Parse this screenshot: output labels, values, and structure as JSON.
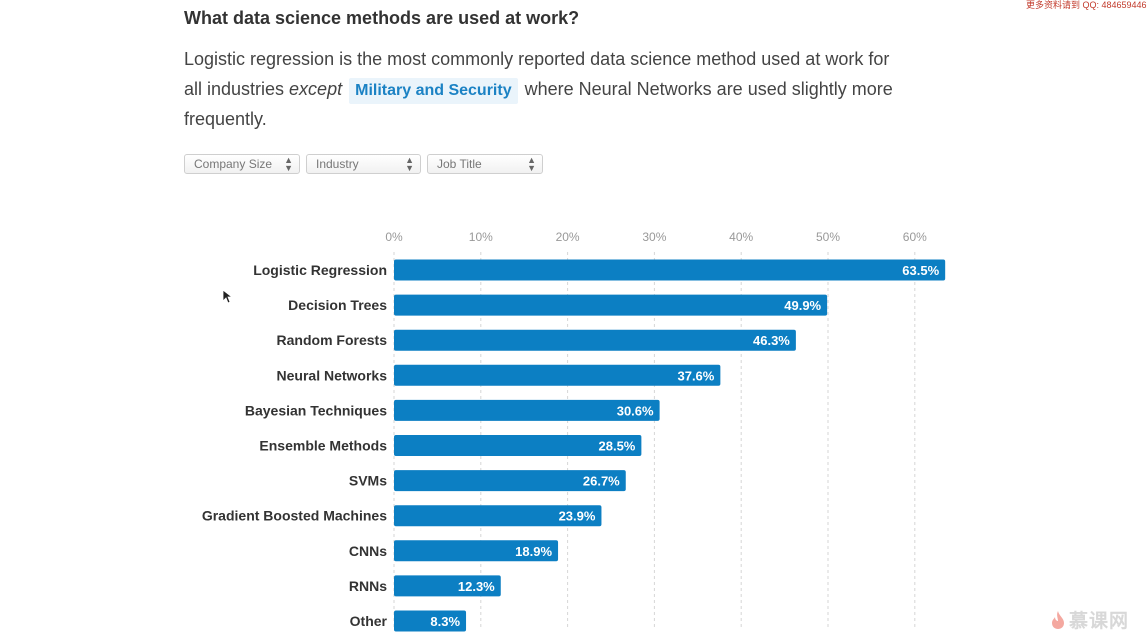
{
  "heading": "What data science methods are used at work?",
  "intro": {
    "part1": "Logistic regression is the most commonly reported data science method used at work for all industries ",
    "emphasis": "except",
    "pill": "Military and Security",
    "part2": " where Neural Networks are used slightly more frequently."
  },
  "filters": [
    {
      "label": "Company Size"
    },
    {
      "label": "Industry"
    },
    {
      "label": "Job Title"
    }
  ],
  "watermark": "更多资料请到 QQ: 484659446",
  "logo": {
    "text": "慕课网"
  },
  "colors": {
    "bar": "#0c7fc3",
    "grid": "#d6d6d6",
    "tick": "#999999",
    "pill_bg": "#eaf4fb",
    "pill_text": "#1b82c4"
  },
  "icons": {
    "filter_arrows": "up-down-arrows-icon",
    "cursor": "mouse-pointer-icon",
    "logo": "flame-icon"
  },
  "chart_data": {
    "type": "bar",
    "orientation": "horizontal",
    "categories": [
      "Logistic Regression",
      "Decision Trees",
      "Random Forests",
      "Neural Networks",
      "Bayesian Techniques",
      "Ensemble Methods",
      "SVMs",
      "Gradient Boosted Machines",
      "CNNs",
      "RNNs",
      "Other"
    ],
    "values": [
      63.5,
      49.9,
      46.3,
      37.6,
      30.6,
      28.5,
      26.7,
      23.9,
      18.9,
      12.3,
      8.3
    ],
    "value_labels": [
      "63.5%",
      "49.9%",
      "46.3%",
      "37.6%",
      "30.6%",
      "28.5%",
      "26.7%",
      "23.9%",
      "18.9%",
      "12.3%",
      "8.3%"
    ],
    "ticks": [
      0,
      10,
      20,
      30,
      40,
      50,
      60
    ],
    "tick_labels": [
      "0%",
      "10%",
      "20%",
      "30%",
      "40%",
      "50%",
      "60%"
    ],
    "xlim": [
      0,
      64
    ],
    "grid": true,
    "axis_position": "top"
  }
}
